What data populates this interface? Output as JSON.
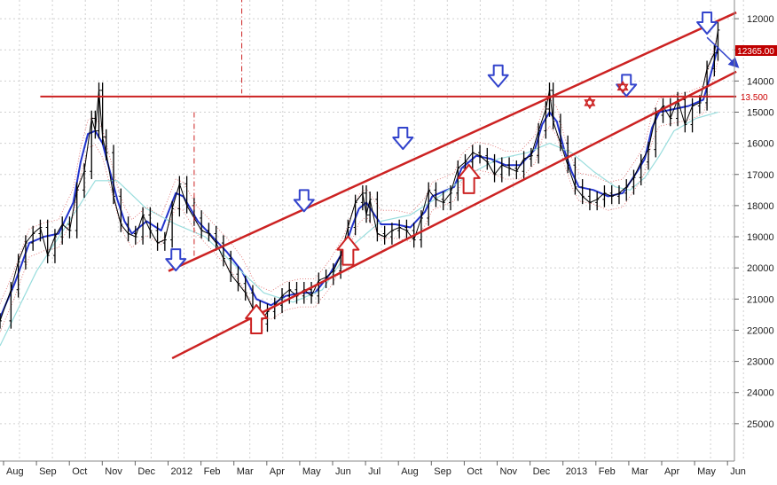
{
  "chart_data": {
    "type": "candlestick",
    "title": "",
    "xlabel": "",
    "ylabel": "",
    "y_axis": {
      "inverted": true,
      "position": "right",
      "ticks": [
        "12000",
        "13000",
        "14000",
        "15000",
        "16000",
        "17000",
        "18000",
        "19000",
        "20000",
        "21000",
        "22000",
        "23000",
        "24000",
        "25000"
      ],
      "ylim": [
        11400,
        26200
      ]
    },
    "x_axis": {
      "ticks": [
        "Aug",
        "Sep",
        "Oct",
        "Nov",
        "Dec",
        "2012",
        "Feb",
        "Mar",
        "Apr",
        "May",
        "Jun",
        "Jul",
        "Aug",
        "Sep",
        "Oct",
        "Nov",
        "Dec",
        "2013",
        "Feb",
        "Mar",
        "Apr",
        "May",
        "Jun"
      ]
    },
    "grid": true,
    "price_labels": {
      "last": "12365.00",
      "target": "13.500"
    },
    "series": [
      {
        "kind": "price",
        "color": "#000000",
        "points": [
          [
            0,
            21700
          ],
          [
            3,
            20700
          ],
          [
            5,
            19800
          ],
          [
            7,
            19200
          ],
          [
            9,
            18900
          ],
          [
            11,
            18700
          ],
          [
            13,
            19600
          ],
          [
            15,
            19000
          ],
          [
            17,
            18600
          ],
          [
            19,
            18800
          ],
          [
            21,
            17500
          ],
          [
            23,
            16900
          ],
          [
            25,
            15200
          ],
          [
            26,
            15600
          ],
          [
            27,
            14300
          ],
          [
            28,
            15800
          ],
          [
            29,
            16300
          ],
          [
            31,
            17700
          ],
          [
            33,
            18600
          ],
          [
            35,
            18900
          ],
          [
            37,
            19000
          ],
          [
            39,
            18300
          ],
          [
            41,
            18800
          ],
          [
            43,
            19200
          ],
          [
            45,
            19100
          ],
          [
            47,
            18100
          ],
          [
            49,
            17300
          ],
          [
            51,
            18000
          ],
          [
            53,
            18400
          ],
          [
            55,
            18800
          ],
          [
            57,
            18900
          ],
          [
            59,
            19200
          ],
          [
            61,
            19700
          ],
          [
            63,
            20200
          ],
          [
            65,
            20500
          ],
          [
            67,
            20800
          ],
          [
            69,
            21300
          ],
          [
            71,
            21800
          ],
          [
            73,
            21400
          ],
          [
            75,
            21200
          ],
          [
            77,
            20900
          ],
          [
            79,
            20700
          ],
          [
            81,
            20900
          ],
          [
            83,
            20700
          ],
          [
            85,
            20900
          ],
          [
            87,
            20400
          ],
          [
            89,
            20300
          ],
          [
            91,
            20100
          ],
          [
            93,
            19600
          ],
          [
            95,
            18700
          ],
          [
            97,
            17900
          ],
          [
            99,
            17600
          ],
          [
            100,
            18300
          ],
          [
            101,
            17800
          ],
          [
            103,
            18900
          ],
          [
            105,
            19000
          ],
          [
            107,
            18800
          ],
          [
            109,
            18700
          ],
          [
            111,
            18800
          ],
          [
            113,
            19100
          ],
          [
            115,
            18400
          ],
          [
            117,
            17500
          ],
          [
            119,
            17800
          ],
          [
            121,
            17900
          ],
          [
            123,
            17600
          ],
          [
            125,
            16800
          ],
          [
            127,
            16600
          ],
          [
            129,
            16300
          ],
          [
            131,
            16400
          ],
          [
            133,
            16600
          ],
          [
            135,
            17000
          ],
          [
            137,
            16700
          ],
          [
            139,
            16800
          ],
          [
            141,
            16900
          ],
          [
            143,
            16500
          ],
          [
            145,
            16400
          ],
          [
            147,
            15600
          ],
          [
            149,
            14900
          ],
          [
            150,
            14300
          ],
          [
            151,
            15300
          ],
          [
            153,
            16000
          ],
          [
            155,
            16700
          ],
          [
            157,
            17400
          ],
          [
            159,
            17700
          ],
          [
            161,
            17900
          ],
          [
            163,
            17800
          ],
          [
            165,
            17600
          ],
          [
            167,
            17700
          ],
          [
            169,
            17600
          ],
          [
            171,
            17400
          ],
          [
            173,
            17100
          ],
          [
            175,
            16600
          ],
          [
            177,
            16200
          ],
          [
            179,
            15100
          ],
          [
            181,
            14800
          ],
          [
            183,
            15200
          ],
          [
            185,
            14600
          ],
          [
            187,
            15400
          ],
          [
            189,
            14800
          ],
          [
            191,
            14700
          ],
          [
            193,
            13600
          ],
          [
            195,
            13100
          ],
          [
            196,
            12365
          ]
        ]
      },
      {
        "kind": "moving-average",
        "color": "#2233cc",
        "points": [
          [
            0,
            21600
          ],
          [
            4,
            20500
          ],
          [
            8,
            19200
          ],
          [
            12,
            19000
          ],
          [
            16,
            18900
          ],
          [
            20,
            17900
          ],
          [
            22,
            16600
          ],
          [
            24,
            15700
          ],
          [
            26,
            15600
          ],
          [
            28,
            16000
          ],
          [
            30,
            16900
          ],
          [
            32,
            17800
          ],
          [
            34,
            18500
          ],
          [
            36,
            18900
          ],
          [
            38,
            18700
          ],
          [
            40,
            18500
          ],
          [
            44,
            18800
          ],
          [
            48,
            17600
          ],
          [
            50,
            17700
          ],
          [
            54,
            18500
          ],
          [
            58,
            19000
          ],
          [
            62,
            19500
          ],
          [
            66,
            20100
          ],
          [
            70,
            21000
          ],
          [
            74,
            21200
          ],
          [
            78,
            20900
          ],
          [
            82,
            20800
          ],
          [
            86,
            20800
          ],
          [
            90,
            20200
          ],
          [
            94,
            19400
          ],
          [
            96,
            18700
          ],
          [
            98,
            18100
          ],
          [
            100,
            17900
          ],
          [
            104,
            18600
          ],
          [
            108,
            18600
          ],
          [
            112,
            18700
          ],
          [
            116,
            18200
          ],
          [
            118,
            17700
          ],
          [
            120,
            17600
          ],
          [
            124,
            17400
          ],
          [
            126,
            16800
          ],
          [
            130,
            16400
          ],
          [
            134,
            16500
          ],
          [
            138,
            16700
          ],
          [
            142,
            16700
          ],
          [
            146,
            16200
          ],
          [
            148,
            15400
          ],
          [
            150,
            15000
          ],
          [
            152,
            15300
          ],
          [
            154,
            16200
          ],
          [
            156,
            16900
          ],
          [
            158,
            17400
          ],
          [
            162,
            17500
          ],
          [
            166,
            17700
          ],
          [
            170,
            17600
          ],
          [
            174,
            16900
          ],
          [
            176,
            16500
          ],
          [
            178,
            15500
          ],
          [
            180,
            15000
          ],
          [
            184,
            14900
          ],
          [
            188,
            14800
          ],
          [
            192,
            14600
          ],
          [
            194,
            13800
          ],
          [
            196,
            12900
          ]
        ]
      },
      {
        "kind": "moving-average",
        "color": "#99dddd",
        "points": [
          [
            0,
            22500
          ],
          [
            10,
            20100
          ],
          [
            20,
            18300
          ],
          [
            26,
            17200
          ],
          [
            32,
            17200
          ],
          [
            40,
            18100
          ],
          [
            48,
            18600
          ],
          [
            56,
            19000
          ],
          [
            64,
            19900
          ],
          [
            72,
            20800
          ],
          [
            80,
            21100
          ],
          [
            88,
            20700
          ],
          [
            96,
            19300
          ],
          [
            104,
            18500
          ],
          [
            112,
            18300
          ],
          [
            120,
            17700
          ],
          [
            128,
            17000
          ],
          [
            136,
            16500
          ],
          [
            144,
            16300
          ],
          [
            150,
            16000
          ],
          [
            156,
            16300
          ],
          [
            162,
            16900
          ],
          [
            168,
            17400
          ],
          [
            172,
            17500
          ],
          [
            176,
            17100
          ],
          [
            180,
            16400
          ],
          [
            184,
            15600
          ],
          [
            190,
            15200
          ],
          [
            196,
            15000
          ]
        ]
      }
    ],
    "annotations": {
      "channel_upper": [
        [
          46,
          20100
        ],
        [
          201,
          11800
        ]
      ],
      "channel_lower": [
        [
          47,
          22900
        ],
        [
          201,
          13700
        ]
      ],
      "resistance": [
        [
          11,
          14500
        ],
        [
          201,
          14500
        ]
      ],
      "down_arrows": [
        [
          48,
          19400
        ],
        [
          83,
          17500
        ],
        [
          110,
          15500
        ],
        [
          136,
          13500
        ],
        [
          171,
          13800
        ],
        [
          193,
          11800
        ]
      ],
      "up_arrows": [
        [
          70,
          22100
        ],
        [
          95,
          19900
        ],
        [
          128,
          17600
        ]
      ],
      "stars": [
        [
          161,
          14700
        ],
        [
          170,
          14200
        ]
      ],
      "vertical_markers": [
        [
          66,
          11300,
          14400
        ],
        [
          53,
          15000,
          19700
        ]
      ],
      "projection_arrow": [
        [
          193,
          12600
        ],
        [
          201,
          13500
        ]
      ]
    }
  }
}
